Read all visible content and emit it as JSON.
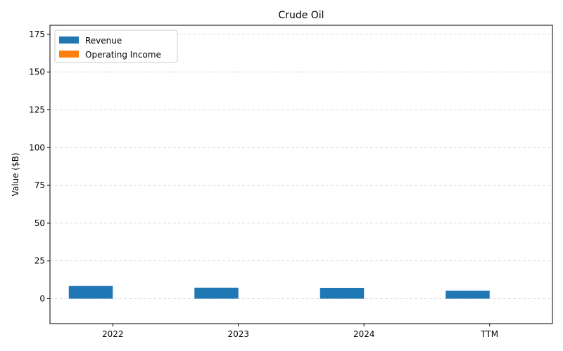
{
  "chart_data": {
    "type": "bar",
    "title": "Crude Oil",
    "xlabel": "",
    "ylabel": "Value ($B)",
    "categories": [
      "2022",
      "2023",
      "2024",
      "TTM"
    ],
    "series": [
      {
        "name": "Revenue",
        "values": [
          8.5,
          7.3,
          7.2,
          5.3
        ],
        "color": "#1f77b4"
      },
      {
        "name": "Operating Income",
        "values": [
          0,
          0,
          0,
          0
        ],
        "color": "#ff7f0e"
      }
    ],
    "ylim": [
      -16.5,
      181
    ],
    "yticks": [
      0,
      25,
      50,
      75,
      100,
      125,
      150,
      175
    ],
    "grid": "y, dashed",
    "legend_position": "top-left"
  }
}
